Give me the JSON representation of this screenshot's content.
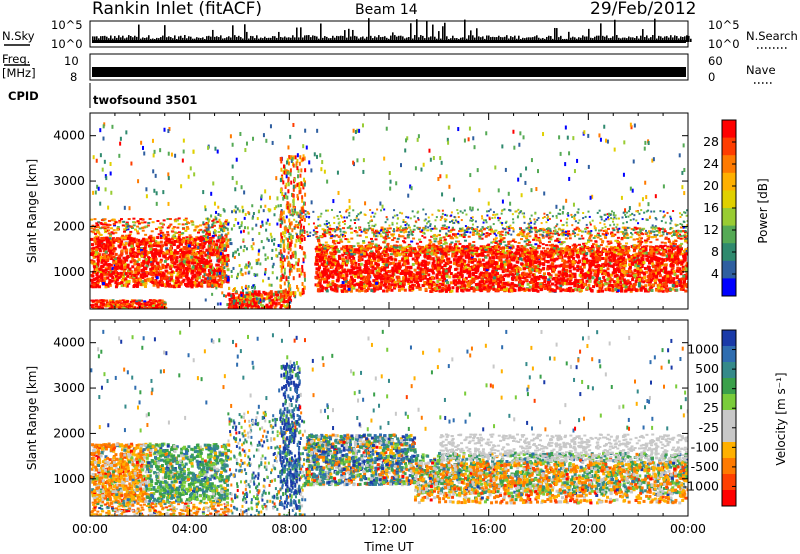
{
  "header": {
    "station": "Rankin Inlet (fitACF)",
    "beam": "Beam 14",
    "date": "29/Feb/2012"
  },
  "strips": {
    "nsky_label": "N.Sky",
    "nsearch_label": "N.Search",
    "nsky_ticks": [
      "10^5",
      "10^0"
    ],
    "nsearch_ticks": [
      "10^5",
      "10^0"
    ],
    "freq_label_1": "Freq.",
    "freq_label_2": "[MHz]",
    "freq_ticks": [
      "10",
      "8"
    ],
    "nave_label": "Nave",
    "nave_ticks": [
      "60",
      "0"
    ],
    "cpid_label": "CPID",
    "cpid_value": "twofsound 3501"
  },
  "chart_data": [
    {
      "type": "heatmap",
      "name": "power",
      "xlabel": "",
      "ylabel": "Slant Range [km]",
      "y_ticks": [
        1000,
        2000,
        3000,
        4000
      ],
      "ylim": [
        180,
        4500
      ],
      "xlim": [
        0,
        24
      ],
      "colorbar": {
        "label": "Power [dB]",
        "ticks": [
          "28",
          "24",
          "20",
          "16",
          "12",
          "8",
          "4"
        ],
        "colors": [
          "#ff0000",
          "#ff3d00",
          "#ff7a00",
          "#ffb000",
          "#e0d000",
          "#99cc33",
          "#55aa55",
          "#2f8a6e",
          "#2f5fa0",
          "#0000ff"
        ]
      }
    },
    {
      "type": "heatmap",
      "name": "velocity",
      "xlabel": "Time UT",
      "ylabel": "Slant Range [km]",
      "y_ticks": [
        1000,
        2000,
        3000,
        4000
      ],
      "ylim": [
        180,
        4500
      ],
      "xlim": [
        0,
        24
      ],
      "x_ticks": [
        "00:00",
        "04:00",
        "08:00",
        "12:00",
        "16:00",
        "20:00",
        "00:00"
      ],
      "colorbar": {
        "label": "Velocity [m s⁻¹]",
        "ticks": [
          "1000",
          "500",
          "100",
          "25",
          "-25",
          "-100",
          "-500",
          "-1000"
        ],
        "colors": [
          "#1a3aa8",
          "#2f6db0",
          "#358a8a",
          "#3aa04a",
          "#7acc3a",
          "#c8c8c8",
          "#c8c8c8",
          "#ffb000",
          "#ff7a00",
          "#ff4000",
          "#ff0000"
        ]
      }
    }
  ]
}
